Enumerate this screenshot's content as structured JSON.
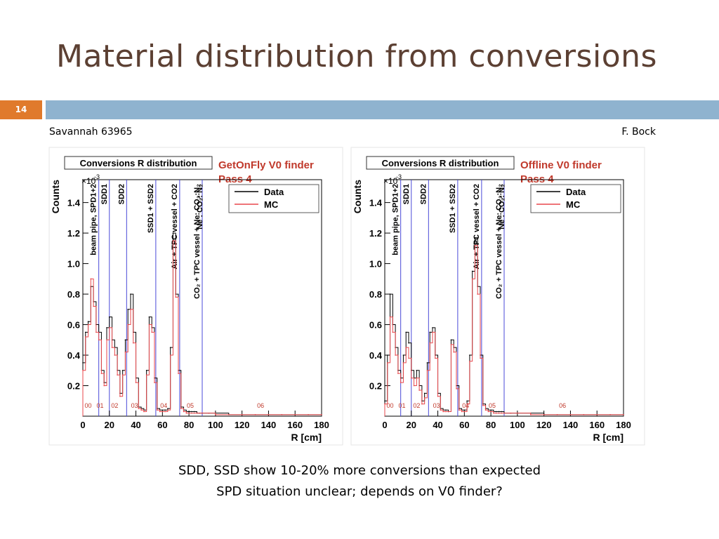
{
  "slide": {
    "title": "Material distribution from conversions",
    "number": "14",
    "ref_left": "Savannah 63965",
    "ref_right": "F. Bock",
    "captions": [
      "SDD, SSD show 10-20% more conversions than expected",
      "SPD situation unclear; depends on V0 finder?"
    ],
    "colors": {
      "title": "#5c4033",
      "accent_bar": "#e07a2c",
      "header_bar": "#8fb3cf",
      "data_line": "#000000",
      "mc_line": "#e8474b",
      "finder_text": "#c0392b",
      "marker_line": "#4a4ad8"
    }
  },
  "chart_data": [
    {
      "type": "line",
      "title": "Conversions R distribution",
      "finder": "GetOnFly V0 finder",
      "pass": "Pass 4",
      "xlabel": "R [cm]",
      "ylabel": "Counts",
      "y_exponent": "×10",
      "y_exponent_sup": "-3",
      "xlim": [
        0,
        180
      ],
      "ylim": [
        0,
        1.55
      ],
      "xticks": [
        0,
        20,
        40,
        60,
        80,
        100,
        120,
        140,
        160,
        180
      ],
      "yticks": [
        0.2,
        0.4,
        0.6,
        0.8,
        1.0,
        1.2,
        1.4
      ],
      "ytick_labels": [
        "0.2",
        "0.4",
        "0.6",
        "0.8",
        "1.0",
        "1.2",
        "1.4"
      ],
      "legend": [
        "Data",
        "MC"
      ],
      "legend_position": "top-right",
      "regions": [
        {
          "label": "beam pipe, SPD1+2",
          "r": 12
        },
        {
          "label": "SDD1",
          "r": 20
        },
        {
          "label": "SDD2",
          "r": 33
        },
        {
          "label": "SSD1 + SSD2",
          "r": 55
        },
        {
          "label": "Air + TPC vessel + CO",
          "sub": "2",
          "r": 73
        },
        {
          "label": "CO₂ + TPC vessel + Ne: CO₂:N₂",
          "r": 90
        },
        {
          "label": "Ne : CO₂: N₂",
          "r": 92
        }
      ],
      "region_lines": [
        12,
        20,
        33,
        55,
        73,
        90
      ],
      "zone_labels": [
        {
          "text": "00",
          "r": 4
        },
        {
          "text": "01",
          "r": 13
        },
        {
          "text": "02",
          "r": 24
        },
        {
          "text": "03",
          "r": 39
        },
        {
          "text": "04",
          "r": 61
        },
        {
          "text": "05",
          "r": 81
        },
        {
          "text": "06",
          "r": 134
        }
      ],
      "series": [
        {
          "name": "Data",
          "x": [
            0,
            2,
            4,
            6,
            8,
            10,
            12,
            14,
            16,
            18,
            20,
            22,
            24,
            26,
            28,
            30,
            32,
            34,
            36,
            38,
            40,
            42,
            44,
            46,
            48,
            50,
            52,
            54,
            56,
            58,
            60,
            62,
            64,
            66,
            68,
            70,
            72,
            74,
            76,
            78,
            80,
            82,
            84,
            86,
            88,
            90,
            95,
            100,
            110,
            120,
            130,
            140,
            150,
            160,
            170,
            180
          ],
          "y": [
            0.35,
            0.55,
            0.62,
            0.85,
            0.75,
            0.6,
            0.55,
            0.3,
            0.22,
            0.58,
            0.65,
            0.5,
            0.45,
            0.3,
            0.15,
            0.3,
            0.5,
            0.7,
            0.8,
            0.55,
            0.25,
            0.06,
            0.05,
            0.04,
            0.3,
            0.65,
            0.58,
            0.25,
            0.05,
            0.04,
            0.04,
            0.04,
            0.05,
            0.45,
            1.2,
            0.8,
            0.3,
            0.06,
            0.04,
            0.03,
            0.03,
            0.03,
            0.03,
            0.02,
            0.02,
            0.02,
            0.02,
            0.02,
            0.01,
            0.01,
            0.01,
            0.01,
            0.01,
            0.01,
            0.01,
            0.01
          ]
        },
        {
          "name": "MC",
          "x": [
            0,
            2,
            4,
            6,
            8,
            10,
            12,
            14,
            16,
            18,
            20,
            22,
            24,
            26,
            28,
            30,
            32,
            34,
            36,
            38,
            40,
            42,
            44,
            46,
            48,
            50,
            52,
            54,
            56,
            58,
            60,
            62,
            64,
            66,
            68,
            70,
            72,
            74,
            76,
            78,
            80,
            82,
            84,
            86,
            88,
            90,
            95,
            100,
            110,
            120,
            130,
            140,
            150,
            160,
            170,
            180
          ],
          "y": [
            0.3,
            0.52,
            0.6,
            0.9,
            0.72,
            0.55,
            0.5,
            0.28,
            0.2,
            0.5,
            0.58,
            0.45,
            0.4,
            0.27,
            0.13,
            0.27,
            0.42,
            0.6,
            0.7,
            0.48,
            0.22,
            0.05,
            0.04,
            0.03,
            0.27,
            0.6,
            0.55,
            0.22,
            0.04,
            0.03,
            0.03,
            0.03,
            0.04,
            0.4,
            1.15,
            0.78,
            0.28,
            0.05,
            0.03,
            0.02,
            0.02,
            0.02,
            0.02,
            0.02,
            0.02,
            0.02,
            0.02,
            0.01,
            0.01,
            0.01,
            0.01,
            0.01,
            0.01,
            0.01,
            0.01,
            0.01
          ]
        }
      ]
    },
    {
      "type": "line",
      "title": "Conversions R distribution",
      "finder": "Offline V0 finder",
      "pass": "Pass 4",
      "xlabel": "R [cm]",
      "ylabel": "Counts",
      "y_exponent": "×10",
      "y_exponent_sup": "-3",
      "xlim": [
        0,
        180
      ],
      "ylim": [
        0,
        1.55
      ],
      "xticks": [
        0,
        20,
        40,
        60,
        80,
        100,
        120,
        140,
        160,
        180
      ],
      "yticks": [
        0.2,
        0.4,
        0.6,
        0.8,
        1.0,
        1.2,
        1.4
      ],
      "ytick_labels": [
        "0.2",
        "0.4",
        "0.6",
        "0.8",
        "1.0",
        "1.2",
        "1.4"
      ],
      "legend": [
        "Data",
        "MC"
      ],
      "legend_position": "top-right",
      "regions": [
        {
          "label": "beam pipe, SPD1+2",
          "r": 12
        },
        {
          "label": "SDD1",
          "r": 20
        },
        {
          "label": "SDD2",
          "r": 33
        },
        {
          "label": "SSD1 + SSD2",
          "r": 55
        },
        {
          "label": "Air + TPC vessel + CO",
          "sub": "2",
          "r": 73
        },
        {
          "label": "CO₂ + TPC vessel + Ne: CO₂:N₂",
          "r": 90
        },
        {
          "label": "Ne : CO₂: N₂",
          "r": 92
        }
      ],
      "region_lines": [
        12,
        20,
        33,
        55,
        73,
        90
      ],
      "zone_labels": [
        {
          "text": "00",
          "r": 4
        },
        {
          "text": "01",
          "r": 13
        },
        {
          "text": "02",
          "r": 24
        },
        {
          "text": "03",
          "r": 39
        },
        {
          "text": "04",
          "r": 61
        },
        {
          "text": "05",
          "r": 81
        },
        {
          "text": "06",
          "r": 134
        }
      ],
      "series": [
        {
          "name": "Data",
          "x": [
            0,
            2,
            4,
            6,
            8,
            10,
            12,
            14,
            16,
            18,
            20,
            22,
            24,
            26,
            28,
            30,
            32,
            34,
            36,
            38,
            40,
            42,
            44,
            46,
            48,
            50,
            52,
            54,
            56,
            58,
            60,
            62,
            64,
            66,
            68,
            70,
            72,
            74,
            76,
            78,
            80,
            82,
            84,
            86,
            88,
            90,
            95,
            100,
            110,
            120,
            130,
            140,
            150,
            160,
            170,
            180
          ],
          "y": [
            0.1,
            0.4,
            0.8,
            0.6,
            0.45,
            0.3,
            0.25,
            0.4,
            0.55,
            0.48,
            0.3,
            0.25,
            0.3,
            0.2,
            0.1,
            0.15,
            0.35,
            0.55,
            0.58,
            0.4,
            0.15,
            0.05,
            0.04,
            0.04,
            0.03,
            0.5,
            0.45,
            0.2,
            0.05,
            0.04,
            0.04,
            0.1,
            0.4,
            0.95,
            1.17,
            0.85,
            0.4,
            0.08,
            0.05,
            0.04,
            0.04,
            0.03,
            0.03,
            0.03,
            0.03,
            0.02,
            0.02,
            0.02,
            0.02,
            0.01,
            0.01,
            0.01,
            0.01,
            0.01,
            0.01,
            0.01
          ]
        },
        {
          "name": "MC",
          "x": [
            0,
            2,
            4,
            6,
            8,
            10,
            12,
            14,
            16,
            18,
            20,
            22,
            24,
            26,
            28,
            30,
            32,
            34,
            36,
            38,
            40,
            42,
            44,
            46,
            48,
            50,
            52,
            54,
            56,
            58,
            60,
            62,
            64,
            66,
            68,
            70,
            72,
            74,
            76,
            78,
            80,
            82,
            84,
            86,
            88,
            90,
            95,
            100,
            110,
            120,
            130,
            140,
            150,
            160,
            170,
            180
          ],
          "y": [
            0.08,
            0.35,
            0.65,
            0.55,
            0.4,
            0.28,
            0.22,
            0.35,
            0.45,
            0.38,
            0.25,
            0.2,
            0.25,
            0.17,
            0.08,
            0.12,
            0.3,
            0.48,
            0.55,
            0.38,
            0.13,
            0.04,
            0.03,
            0.03,
            0.03,
            0.47,
            0.42,
            0.18,
            0.04,
            0.03,
            0.03,
            0.08,
            0.36,
            0.9,
            1.12,
            0.8,
            0.38,
            0.07,
            0.04,
            0.03,
            0.03,
            0.02,
            0.02,
            0.02,
            0.02,
            0.02,
            0.02,
            0.02,
            0.01,
            0.01,
            0.01,
            0.01,
            0.01,
            0.01,
            0.01,
            0.01
          ]
        }
      ]
    }
  ]
}
